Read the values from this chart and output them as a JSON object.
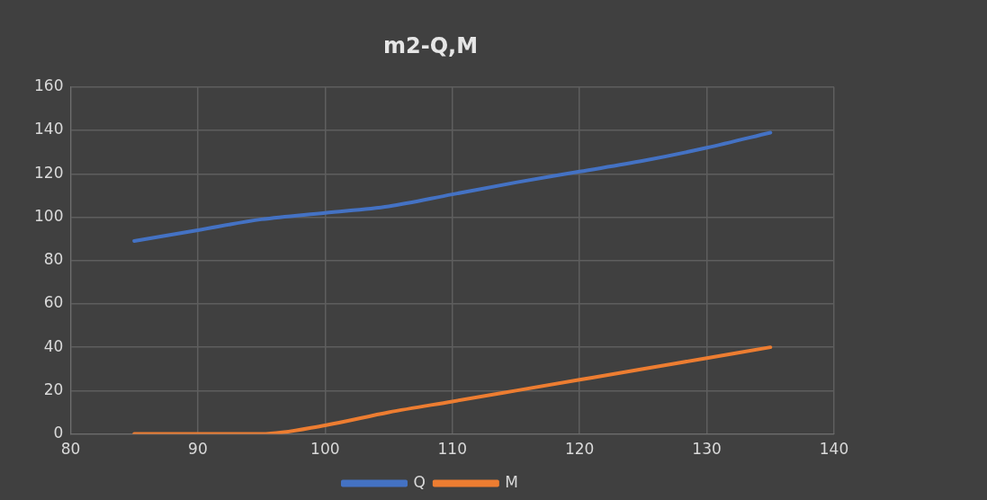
{
  "chart_data": {
    "type": "line",
    "title": "m2-Q,M",
    "x": [
      85,
      90,
      95,
      100,
      105,
      110,
      115,
      120,
      125,
      130,
      135
    ],
    "series": [
      {
        "name": "Q",
        "color": "#4472c4",
        "values": [
          89,
          94,
          99,
          102,
          105,
          110.5,
          116,
          121,
          126,
          132,
          139
        ]
      },
      {
        "name": "M",
        "color": "#ed7d31",
        "values": [
          0,
          0,
          0,
          4,
          10,
          15,
          20,
          25,
          30,
          35,
          40
        ]
      }
    ],
    "xlim": [
      80,
      140
    ],
    "xticks": [
      80,
      90,
      100,
      110,
      120,
      130,
      140
    ],
    "ylim": [
      0,
      160
    ],
    "yticks": [
      0,
      20,
      40,
      60,
      80,
      100,
      120,
      140,
      160
    ],
    "grid": true,
    "legend": "bottom",
    "marker": "none",
    "line_style": "solid"
  }
}
